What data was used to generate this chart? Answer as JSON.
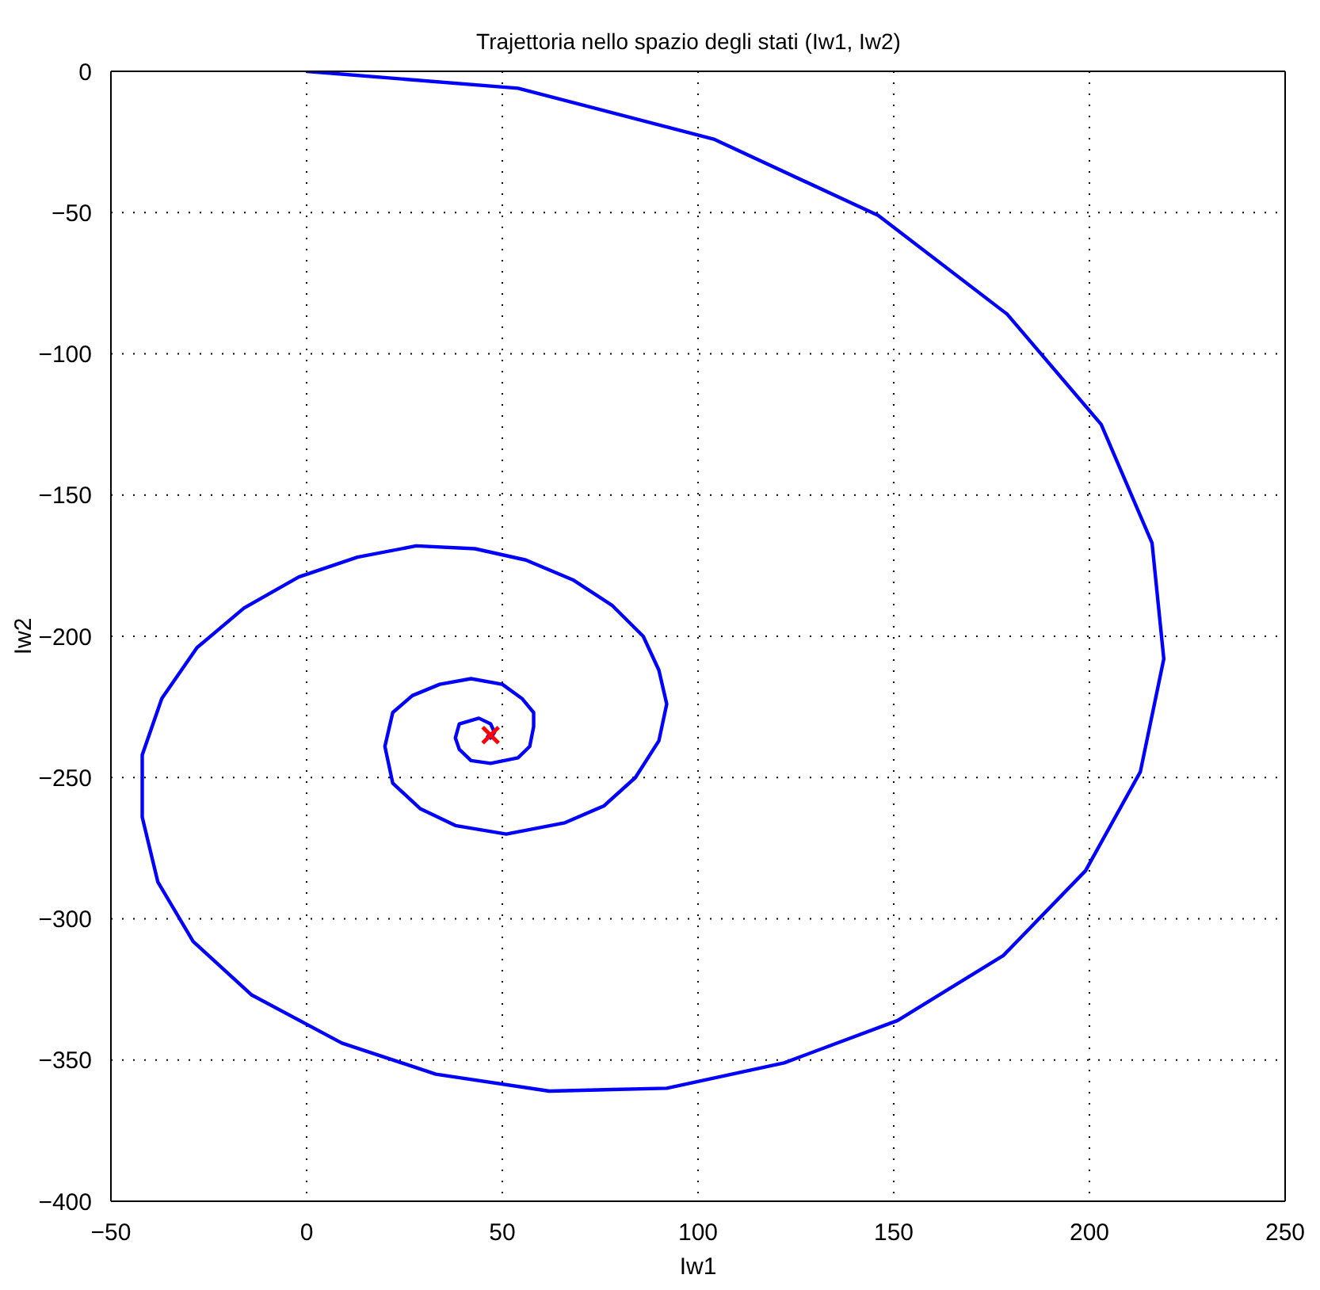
{
  "chart_data": {
    "type": "line",
    "title": "Trajettoria nello spazio degli stati (Iw1, Iw2)",
    "xlabel": "Iw1",
    "ylabel": "Iw2",
    "xlim": [
      -50,
      250
    ],
    "ylim": [
      -400,
      0
    ],
    "xticks": [
      -50,
      0,
      50,
      100,
      150,
      200,
      250
    ],
    "yticks": [
      -400,
      -350,
      -300,
      -250,
      -200,
      -150,
      -100,
      -50,
      0
    ],
    "grid": true,
    "series": [
      {
        "type": "line",
        "color": "#0000ff",
        "marker": "none",
        "line_style": "solid",
        "x": [
          0,
          54,
          104,
          146,
          179,
          203,
          216,
          219,
          213,
          199,
          178,
          151,
          122,
          92,
          62,
          33,
          9,
          -14,
          -29,
          -38,
          -42,
          -42,
          -37,
          -28,
          -16,
          -2,
          13,
          28,
          43,
          56,
          68,
          78,
          86,
          90,
          92,
          90,
          84,
          76,
          66,
          51,
          38,
          29,
          22,
          20,
          22,
          27,
          34,
          42,
          50,
          55,
          58,
          58,
          57,
          54,
          47,
          42,
          39,
          38,
          39,
          44,
          47,
          48,
          47,
          46
        ],
        "values": [
          0,
          -6,
          -24,
          -51,
          -86,
          -125,
          -167,
          -208,
          -248,
          -283,
          -313,
          -336,
          -351,
          -360,
          -361,
          -355,
          -344,
          -327,
          -308,
          -287,
          -264,
          -242,
          -222,
          -204,
          -190,
          -179,
          -172,
          -168,
          -169,
          -173,
          -180,
          -189,
          -200,
          -212,
          -224,
          -237,
          -250,
          -260,
          -266,
          -270,
          -267,
          -261,
          -252,
          -239,
          -227,
          -221,
          -217,
          -215,
          -217,
          -222,
          -227,
          -232,
          -239,
          -243,
          -245,
          -244,
          -240,
          -236,
          -231,
          -229,
          -231,
          -234,
          -236,
          -235
        ]
      },
      {
        "type": "scatter",
        "color": "#ff0000",
        "marker": "cross",
        "x": [
          47
        ],
        "values": [
          -235
        ]
      }
    ]
  }
}
